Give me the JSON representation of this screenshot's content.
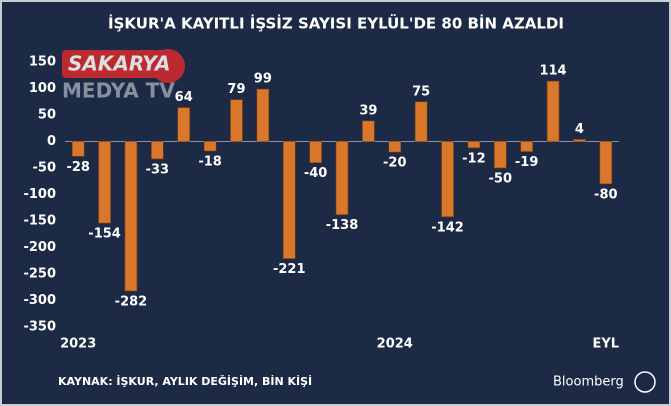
{
  "chart_data": {
    "type": "bar",
    "title": "İŞKUR'A KAYITLI İŞSİZ SAYISI EYLÜL'DE 80 BİN AZALDI",
    "categories": [
      "2023",
      null,
      null,
      null,
      null,
      null,
      null,
      null,
      null,
      null,
      null,
      null,
      "2024",
      null,
      null,
      null,
      null,
      null,
      null,
      null,
      "EYL"
    ],
    "values": [
      -28,
      -154,
      -282,
      -33,
      64,
      -18,
      79,
      99,
      -221,
      -40,
      -138,
      39,
      -20,
      75,
      -142,
      -12,
      -50,
      -19,
      114,
      4,
      -80
    ],
    "color": "#d9772b",
    "ylim": [
      -350,
      150
    ],
    "yticks": [
      -350,
      -300,
      -250,
      -200,
      -150,
      -100,
      -50,
      0,
      50,
      100,
      150
    ],
    "grid": false,
    "source": "KAYNAK: İŞKUR, AYLIK DEĞİŞİM, BİN KİŞİ",
    "brand": "Bloomberg",
    "watermark": [
      "SAKARYA",
      "MEDYA TV"
    ]
  }
}
